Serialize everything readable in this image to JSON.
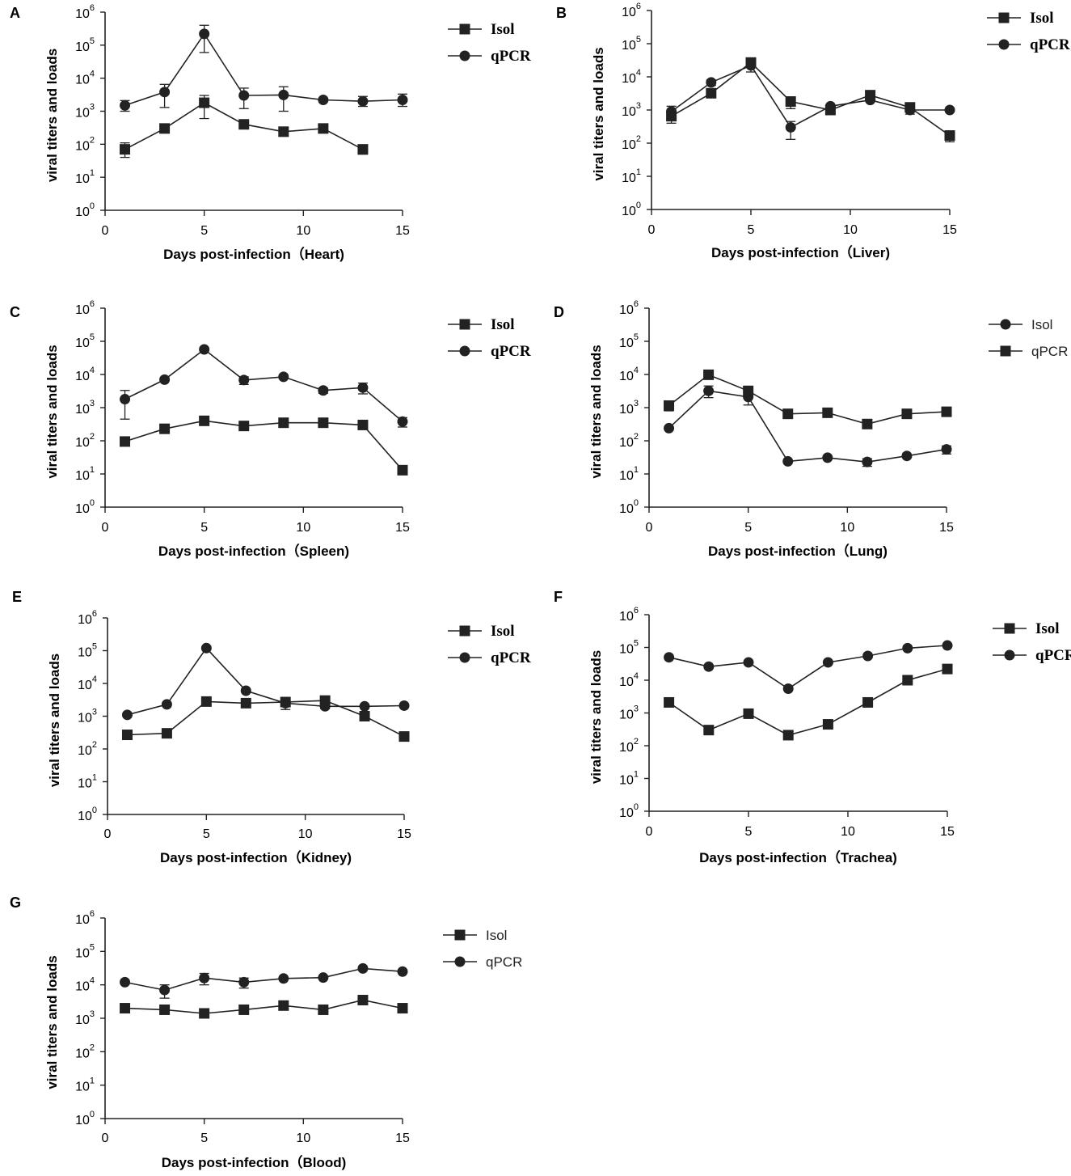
{
  "figure": {
    "ylabel": "viral titers and loads",
    "y_ticks": [
      {
        "base": "10",
        "exp": "0"
      },
      {
        "base": "10",
        "exp": "1"
      },
      {
        "base": "10",
        "exp": "2"
      },
      {
        "base": "10",
        "exp": "3"
      },
      {
        "base": "10",
        "exp": "4"
      },
      {
        "base": "10",
        "exp": "5"
      },
      {
        "base": "10",
        "exp": "6"
      }
    ],
    "x_ticks": [
      "0",
      "5",
      "10",
      "15"
    ],
    "line_color": "#222222"
  },
  "chart_data": [
    {
      "panel": "A",
      "type": "line",
      "organ": "Heart",
      "title": "",
      "xlabel": "Days post-infection（Heart)",
      "ylabel": "viral titers and loads",
      "xlim": [
        0,
        15
      ],
      "ylim": [
        1,
        1000000
      ],
      "yscale": "log",
      "legend_style": "serif",
      "series": [
        {
          "name": "Isol",
          "marker": "square",
          "x": [
            1,
            3,
            5,
            7,
            9,
            11,
            13
          ],
          "values": [
            70,
            300,
            1800,
            400,
            240,
            300,
            70
          ],
          "err_lo": [
            40,
            300,
            600,
            400,
            240,
            300,
            50
          ],
          "err_hi": [
            110,
            300,
            3000,
            400,
            240,
            300,
            90
          ]
        },
        {
          "name": "qPCR",
          "marker": "circle",
          "x": [
            1,
            3,
            5,
            7,
            9,
            11,
            13,
            15
          ],
          "values": [
            1500,
            3800,
            220000,
            3000,
            3100,
            2200,
            2000,
            2200
          ],
          "err_lo": [
            1000,
            1300,
            60000,
            1200,
            1000,
            2000,
            1400,
            1400
          ],
          "err_hi": [
            2100,
            6500,
            400000,
            5000,
            5500,
            2400,
            2800,
            3300
          ]
        }
      ]
    },
    {
      "panel": "B",
      "type": "line",
      "organ": "Liver",
      "title": "",
      "xlabel": "Days post-infection（Liver)",
      "ylabel": "viral titers and loads",
      "xlim": [
        0,
        15
      ],
      "ylim": [
        1,
        1000000
      ],
      "yscale": "log",
      "legend_style": "serif",
      "series": [
        {
          "name": "Isol",
          "marker": "square",
          "x": [
            1,
            3,
            5,
            7,
            9,
            11,
            13,
            15
          ],
          "values": [
            650,
            3200,
            27000,
            1800,
            1000,
            2800,
            1200,
            170
          ],
          "err_lo": [
            400,
            3200,
            14000,
            1100,
            1000,
            2800,
            1200,
            110
          ],
          "err_hi": [
            1000,
            3200,
            32000,
            2500,
            1000,
            3200,
            1200,
            230
          ]
        },
        {
          "name": "qPCR",
          "marker": "circle",
          "x": [
            1,
            3,
            5,
            7,
            9,
            11,
            13,
            15
          ],
          "values": [
            900,
            6800,
            22000,
            300,
            1300,
            2000,
            1000,
            1000
          ],
          "err_lo": [
            600,
            5500,
            22000,
            130,
            1300,
            1800,
            750,
            1000
          ],
          "err_hi": [
            1300,
            8000,
            22000,
            450,
            1300,
            2200,
            1300,
            1000
          ]
        }
      ]
    },
    {
      "panel": "C",
      "type": "line",
      "organ": "Spleen",
      "title": "",
      "xlabel": "Days post-infection（Spleen)",
      "ylabel": "viral titers and loads",
      "xlim": [
        0,
        15
      ],
      "ylim": [
        1,
        1000000
      ],
      "yscale": "log",
      "legend_style": "serif",
      "series": [
        {
          "name": "Isol",
          "marker": "square",
          "x": [
            1,
            3,
            5,
            7,
            9,
            11,
            13,
            15
          ],
          "values": [
            95,
            230,
            400,
            280,
            350,
            350,
            300,
            13
          ],
          "err_lo": [
            95,
            230,
            400,
            280,
            350,
            350,
            300,
            13
          ],
          "err_hi": [
            95,
            230,
            400,
            280,
            350,
            350,
            300,
            13
          ]
        },
        {
          "name": "qPCR",
          "marker": "circle",
          "x": [
            1,
            3,
            5,
            7,
            9,
            11,
            13,
            15
          ],
          "values": [
            1800,
            7000,
            57000,
            6800,
            8500,
            3300,
            4000,
            380
          ],
          "err_lo": [
            450,
            7000,
            57000,
            5000,
            7500,
            2700,
            2600,
            260
          ],
          "err_hi": [
            3300,
            7000,
            57000,
            8500,
            9500,
            3900,
            5500,
            500
          ]
        }
      ]
    },
    {
      "panel": "D",
      "type": "line",
      "organ": "Lung",
      "title": "",
      "xlabel": "Days post-infection（Lung)",
      "ylabel": "viral titers and loads",
      "xlim": [
        0,
        15
      ],
      "ylim": [
        1,
        1000000
      ],
      "yscale": "log",
      "legend_style": "sans",
      "series": [
        {
          "name": "Isol",
          "marker": "circle",
          "x": [
            1,
            3,
            5,
            7,
            9,
            11,
            13,
            15
          ],
          "values": [
            240,
            3200,
            2100,
            24,
            31,
            23,
            35,
            55
          ],
          "err_lo": [
            240,
            2000,
            1200,
            24,
            31,
            17,
            35,
            40
          ],
          "err_hi": [
            240,
            4500,
            3000,
            24,
            31,
            29,
            35,
            70
          ]
        },
        {
          "name": "qPCR",
          "marker": "square",
          "x": [
            1,
            3,
            5,
            7,
            9,
            11,
            13,
            15
          ],
          "values": [
            1150,
            9800,
            3200,
            650,
            700,
            320,
            650,
            750
          ],
          "err_lo": [
            800,
            9800,
            3200,
            650,
            700,
            320,
            500,
            750
          ],
          "err_hi": [
            1500,
            9800,
            3200,
            650,
            700,
            320,
            800,
            750
          ]
        }
      ]
    },
    {
      "panel": "E",
      "type": "line",
      "organ": "Kidney",
      "title": "",
      "xlabel": "Days post-infection（Kidney)",
      "ylabel": "viral titers and loads",
      "xlim": [
        0,
        15
      ],
      "ylim": [
        1,
        1000000
      ],
      "yscale": "log",
      "legend_style": "serif",
      "series": [
        {
          "name": "Isol",
          "marker": "square",
          "x": [
            1,
            3,
            5,
            7,
            9,
            11,
            13,
            15
          ],
          "values": [
            270,
            300,
            2800,
            2500,
            2700,
            3000,
            1000,
            240
          ],
          "err_lo": [
            270,
            300,
            2800,
            2500,
            2200,
            2500,
            1000,
            240
          ],
          "err_hi": [
            270,
            300,
            2800,
            2500,
            3200,
            3500,
            1000,
            240
          ]
        },
        {
          "name": "qPCR",
          "marker": "circle",
          "x": [
            1,
            3,
            5,
            7,
            9,
            11,
            13,
            15
          ],
          "values": [
            1100,
            2300,
            120000,
            6000,
            2500,
            2000,
            2000,
            2100
          ],
          "err_lo": [
            1100,
            2300,
            120000,
            6000,
            1600,
            1700,
            2000,
            2100
          ],
          "err_hi": [
            1100,
            2300,
            120000,
            6000,
            3200,
            2300,
            2000,
            2100
          ]
        }
      ]
    },
    {
      "panel": "F",
      "type": "line",
      "organ": "Trachea",
      "title": "",
      "xlabel": "Days post-infection（Trachea)",
      "ylabel": "viral titers and loads",
      "xlim": [
        0,
        15
      ],
      "ylim": [
        1,
        1000000
      ],
      "yscale": "log",
      "legend_style": "serif",
      "series": [
        {
          "name": "Isol",
          "marker": "square",
          "x": [
            1,
            3,
            5,
            7,
            9,
            11,
            13,
            15
          ],
          "values": [
            2100,
            300,
            950,
            210,
            450,
            2100,
            10000,
            22000
          ],
          "err_lo": [
            2100,
            300,
            950,
            210,
            450,
            2100,
            10000,
            22000
          ],
          "err_hi": [
            2100,
            300,
            950,
            210,
            450,
            2100,
            10000,
            22000
          ]
        },
        {
          "name": "qPCR",
          "marker": "circle",
          "x": [
            1,
            3,
            5,
            7,
            9,
            11,
            13,
            15
          ],
          "values": [
            50000,
            26000,
            35000,
            5500,
            35000,
            55000,
            95000,
            115000
          ],
          "err_lo": [
            50000,
            26000,
            35000,
            5500,
            35000,
            55000,
            95000,
            115000
          ],
          "err_hi": [
            50000,
            26000,
            35000,
            5500,
            35000,
            55000,
            95000,
            115000
          ]
        }
      ]
    },
    {
      "panel": "G",
      "type": "line",
      "organ": "Blood",
      "title": "",
      "xlabel": "Days post-infection（Blood)",
      "ylabel": "viral titers and loads",
      "xlim": [
        0,
        15
      ],
      "ylim": [
        1,
        1000000
      ],
      "yscale": "log",
      "legend_style": "sans",
      "series": [
        {
          "name": "Isol",
          "marker": "square",
          "x": [
            1,
            3,
            5,
            7,
            9,
            11,
            13,
            15
          ],
          "values": [
            2000,
            1800,
            1400,
            1800,
            2400,
            1800,
            3500,
            2000
          ],
          "err_lo": [
            2000,
            1800,
            1400,
            1800,
            2400,
            1800,
            3500,
            2000
          ],
          "err_hi": [
            2000,
            1800,
            1400,
            1800,
            2400,
            1800,
            3500,
            2000
          ]
        },
        {
          "name": "qPCR",
          "marker": "circle",
          "x": [
            1,
            3,
            5,
            7,
            9,
            11,
            13,
            15
          ],
          "values": [
            12000,
            7000,
            16000,
            12000,
            15500,
            16500,
            31000,
            25000
          ],
          "err_lo": [
            12000,
            4000,
            10000,
            8000,
            15500,
            16500,
            31000,
            25000
          ],
          "err_hi": [
            12000,
            10000,
            22000,
            16000,
            15500,
            16500,
            31000,
            25000
          ]
        }
      ]
    }
  ]
}
